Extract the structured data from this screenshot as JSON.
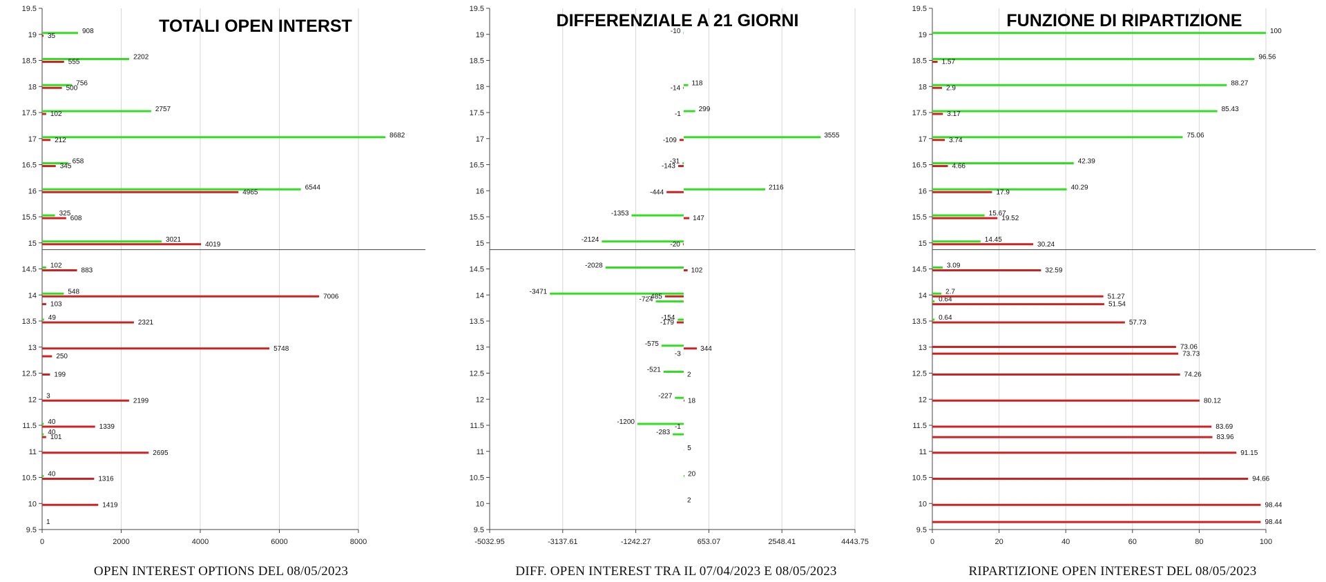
{
  "colors": {
    "calls": "#33dd22",
    "puts": "#cc2222",
    "grid": "#d6d6d6",
    "axis": "#444444",
    "separator": "#555555"
  },
  "chart_data": [
    {
      "type": "bar",
      "orientation": "horizontal",
      "title": "TOTALI OPEN INTERST",
      "caption": "OPEN INTEREST OPTIONS DEL 08/05/2023",
      "xlim": [
        0,
        9500
      ],
      "x_ticks": [
        0,
        2000,
        4000,
        6000,
        8000
      ],
      "x_tick_labels": [
        "0",
        "2000",
        "4000",
        "6000",
        "8000"
      ],
      "ylim": [
        9.5,
        19.5
      ],
      "y_ticks": [
        9.5,
        10,
        10.5,
        11,
        11.5,
        12,
        12.5,
        13,
        13.5,
        14,
        14.5,
        15,
        15.5,
        16,
        16.5,
        17,
        17.5,
        18,
        18.5,
        19,
        19.5
      ],
      "y_tick_labels": [
        "9.5",
        "10",
        "10.5",
        "11",
        "11.5",
        "12",
        "12.5",
        "13",
        "13.5",
        "14",
        "14.5",
        "15",
        "15.5",
        "16",
        "16.5",
        "17",
        "17.5",
        "18",
        "18.5",
        "19",
        "19.5"
      ],
      "separator_y": 14.87,
      "series": [
        {
          "color": "green",
          "bars": [
            {
              "y": 19,
              "value": 908,
              "label": "908"
            },
            {
              "y": 18.5,
              "value": 2202,
              "label": "2202"
            },
            {
              "y": 18,
              "value": 756,
              "label": "756"
            },
            {
              "y": 17.5,
              "value": 2757,
              "label": "2757"
            },
            {
              "y": 17,
              "value": 8682,
              "label": "8682"
            },
            {
              "y": 16.5,
              "value": 658,
              "label": "658"
            },
            {
              "y": 16,
              "value": 6544,
              "label": "6544"
            },
            {
              "y": 15.5,
              "value": 325,
              "label": "325"
            },
            {
              "y": 15,
              "value": 3021,
              "label": "3021"
            },
            {
              "y": 14.5,
              "value": 102,
              "label": "102"
            },
            {
              "y": 14,
              "value": 548,
              "label": "548"
            },
            {
              "y": 13.5,
              "value": 49,
              "label": "49"
            },
            {
              "y": 12,
              "value": 3,
              "label": "3"
            },
            {
              "y": 11.5,
              "value": 40,
              "label": "40"
            },
            {
              "y": 11.3,
              "value": 40,
              "label": "40"
            },
            {
              "y": 10.5,
              "value": 40,
              "label": "40"
            }
          ]
        },
        {
          "color": "red",
          "bars": [
            {
              "y": 19,
              "value": 35,
              "label": "35"
            },
            {
              "y": 18.5,
              "value": 555,
              "label": "555"
            },
            {
              "y": 18,
              "value": 500,
              "label": "500"
            },
            {
              "y": 17.5,
              "value": 102,
              "label": "102"
            },
            {
              "y": 17,
              "value": 212,
              "label": "212"
            },
            {
              "y": 16.5,
              "value": 345,
              "label": "345"
            },
            {
              "y": 16,
              "value": 4965,
              "label": "4965"
            },
            {
              "y": 15.5,
              "value": 608,
              "label": "608"
            },
            {
              "y": 15,
              "value": 4019,
              "label": "4019"
            },
            {
              "y": 14.5,
              "value": 883,
              "label": "883"
            },
            {
              "y": 14,
              "value": 7006,
              "label": "7006"
            },
            {
              "y": 13.85,
              "value": 103,
              "label": "103"
            },
            {
              "y": 13.5,
              "value": 2321,
              "label": "2321"
            },
            {
              "y": 13,
              "value": 5748,
              "label": "5748"
            },
            {
              "y": 12.85,
              "value": 250,
              "label": "250"
            },
            {
              "y": 12.5,
              "value": 199,
              "label": "199"
            },
            {
              "y": 12,
              "value": 2199,
              "label": "2199"
            },
            {
              "y": 11.5,
              "value": 1339,
              "label": "1339"
            },
            {
              "y": 11.3,
              "value": 101,
              "label": "101"
            },
            {
              "y": 11,
              "value": 2695,
              "label": "2695"
            },
            {
              "y": 10.5,
              "value": 1316,
              "label": "1316"
            },
            {
              "y": 10,
              "value": 1419,
              "label": "1419"
            },
            {
              "y": 9.67,
              "value": 1,
              "label": "1"
            }
          ]
        }
      ]
    },
    {
      "type": "bar",
      "orientation": "horizontal",
      "title": "DIFFERENZIALE A 21 GIORNI",
      "caption": "DIFF. OPEN INTEREST TRA IL 07/04/2023 E 08/05/2023",
      "xlim": [
        -5032.95,
        4443.75
      ],
      "x_ticks": [
        -5032.95,
        -3137.61,
        -1242.27,
        653.07,
        2548.41,
        4443.75
      ],
      "x_tick_labels": [
        "-5032.95",
        "-3137.61",
        "-1242.27",
        "653.07",
        "2548.41",
        "4443.75"
      ],
      "ylim": [
        9.5,
        19.5
      ],
      "y_ticks": [
        9.5,
        10,
        10.5,
        11,
        11.5,
        12,
        12.5,
        13,
        13.5,
        14,
        14.5,
        15,
        15.5,
        16,
        16.5,
        17,
        17.5,
        18,
        18.5,
        19,
        19.5
      ],
      "y_tick_labels": [
        "9.5",
        "10",
        "10.5",
        "11",
        "11.5",
        "12",
        "12.5",
        "13",
        "13.5",
        "14",
        "14.5",
        "15",
        "15.5",
        "16",
        "16.5",
        "17",
        "17.5",
        "18",
        "18.5",
        "19",
        "19.5"
      ],
      "separator_y": 14.87,
      "series": [
        {
          "color": "green",
          "bars": [
            {
              "y": 19,
              "value": -10,
              "label": "-10"
            },
            {
              "y": 18,
              "value": 118,
              "label": "118"
            },
            {
              "y": 17.5,
              "value": 299,
              "label": "299"
            },
            {
              "y": 17,
              "value": 3555,
              "label": "3555"
            },
            {
              "y": 16.5,
              "value": -31,
              "label": "-31"
            },
            {
              "y": 16,
              "value": 2116,
              "label": "2116"
            },
            {
              "y": 15.5,
              "value": -1353,
              "label": "-1353"
            },
            {
              "y": 15,
              "value": -2124,
              "label": "-2124"
            },
            {
              "y": 14.5,
              "value": -2028,
              "label": "-2028"
            },
            {
              "y": 14,
              "value": -3471,
              "label": "-3471"
            },
            {
              "y": 13.85,
              "value": -724,
              "label": "-724"
            },
            {
              "y": 13.5,
              "value": -154,
              "label": "-154"
            },
            {
              "y": 13,
              "value": -575,
              "label": "-575"
            },
            {
              "y": 12.5,
              "value": -521,
              "label": "-521"
            },
            {
              "y": 12,
              "value": -227,
              "label": "-227"
            },
            {
              "y": 11.5,
              "value": -1200,
              "label": "-1200"
            },
            {
              "y": 11.3,
              "value": -283,
              "label": "-283"
            },
            {
              "y": 11,
              "value": 5,
              "label": "5"
            },
            {
              "y": 10.5,
              "value": 20,
              "label": "20"
            },
            {
              "y": 10,
              "value": 2,
              "label": "2"
            }
          ]
        },
        {
          "color": "red",
          "bars": [
            {
              "y": 18,
              "value": -14,
              "label": "-14"
            },
            {
              "y": 17.5,
              "value": -1,
              "label": "-1"
            },
            {
              "y": 17,
              "value": -109,
              "label": "-109"
            },
            {
              "y": 16.5,
              "value": -143,
              "label": "-143"
            },
            {
              "y": 16,
              "value": -444,
              "label": "-444"
            },
            {
              "y": 15.5,
              "value": 147,
              "label": "147"
            },
            {
              "y": 15,
              "value": -20,
              "label": "-20"
            },
            {
              "y": 14.5,
              "value": 102,
              "label": "102"
            },
            {
              "y": 14,
              "value": -485,
              "label": "-485"
            },
            {
              "y": 13.5,
              "value": -179,
              "label": "-179"
            },
            {
              "y": 13,
              "value": 344,
              "label": "344"
            },
            {
              "y": 12.9,
              "value": -3,
              "label": "-3"
            },
            {
              "y": 12.5,
              "value": 2,
              "label": "2"
            },
            {
              "y": 12,
              "value": 18,
              "label": "18"
            },
            {
              "y": 11.5,
              "value": -1,
              "label": "-1"
            }
          ]
        }
      ]
    },
    {
      "type": "bar",
      "orientation": "horizontal",
      "title": "FUNZIONE DI RIPARTIZIONE",
      "caption": "RIPARTIZIONE OPEN INTEREST DEL 08/05/2023",
      "xlim": [
        0,
        115
      ],
      "x_ticks": [
        0,
        20,
        40,
        60,
        80,
        100
      ],
      "x_tick_labels": [
        "0",
        "20",
        "40",
        "60",
        "80",
        "100"
      ],
      "ylim": [
        9.5,
        19.5
      ],
      "y_ticks": [
        9.5,
        10,
        10.5,
        11,
        11.5,
        12,
        12.5,
        13,
        13.5,
        14,
        14.5,
        15,
        15.5,
        16,
        16.5,
        17,
        17.5,
        18,
        18.5,
        19,
        19.5
      ],
      "y_tick_labels": [
        "9.5",
        "10",
        "10.5",
        "11",
        "11.5",
        "12",
        "12.5",
        "13",
        "13.5",
        "14",
        "14.5",
        "15",
        "15.5",
        "16",
        "16.5",
        "17",
        "17.5",
        "18",
        "18.5",
        "19",
        "19.5"
      ],
      "separator_y": 14.87,
      "series": [
        {
          "color": "green",
          "bars": [
            {
              "y": 19,
              "value": 100,
              "label": "100"
            },
            {
              "y": 18.5,
              "value": 96.56,
              "label": "96.56"
            },
            {
              "y": 18,
              "value": 88.27,
              "label": "88.27"
            },
            {
              "y": 17.5,
              "value": 85.43,
              "label": "85.43"
            },
            {
              "y": 17,
              "value": 75.06,
              "label": "75.06"
            },
            {
              "y": 16.5,
              "value": 42.39,
              "label": "42.39"
            },
            {
              "y": 16,
              "value": 40.29,
              "label": "40.29"
            },
            {
              "y": 15.5,
              "value": 15.67,
              "label": "15.67"
            },
            {
              "y": 15,
              "value": 14.45,
              "label": "14.45"
            },
            {
              "y": 14.5,
              "value": 3.09,
              "label": "3.09"
            },
            {
              "y": 14,
              "value": 2.7,
              "label": "2.7"
            },
            {
              "y": 13.85,
              "value": 0.64,
              "label": "0.64"
            },
            {
              "y": 13.5,
              "value": 0.64,
              "label": "0.64"
            }
          ]
        },
        {
          "color": "red",
          "bars": [
            {
              "y": 18.5,
              "value": 1.57,
              "label": "1.57"
            },
            {
              "y": 18,
              "value": 2.9,
              "label": "2.9"
            },
            {
              "y": 17.5,
              "value": 3.17,
              "label": "3.17"
            },
            {
              "y": 17,
              "value": 3.74,
              "label": "3.74"
            },
            {
              "y": 16.5,
              "value": 4.66,
              "label": "4.66"
            },
            {
              "y": 16,
              "value": 17.9,
              "label": "17.9"
            },
            {
              "y": 15.5,
              "value": 19.52,
              "label": "19.52"
            },
            {
              "y": 15,
              "value": 30.24,
              "label": "30.24"
            },
            {
              "y": 14.5,
              "value": 32.59,
              "label": "32.59"
            },
            {
              "y": 14,
              "value": 51.27,
              "label": "51.27"
            },
            {
              "y": 13.85,
              "value": 51.54,
              "label": "51.54"
            },
            {
              "y": 13.5,
              "value": 57.73,
              "label": "57.73"
            },
            {
              "y": 13.03,
              "value": 73.06,
              "label": "73.06"
            },
            {
              "y": 12.9,
              "value": 73.73,
              "label": "73.73"
            },
            {
              "y": 12.5,
              "value": 74.26,
              "label": "74.26"
            },
            {
              "y": 12,
              "value": 80.12,
              "label": "80.12"
            },
            {
              "y": 11.5,
              "value": 83.69,
              "label": "83.69"
            },
            {
              "y": 11.3,
              "value": 83.96,
              "label": "83.96"
            },
            {
              "y": 11,
              "value": 91.15,
              "label": "91.15"
            },
            {
              "y": 10.5,
              "value": 94.66,
              "label": "94.66"
            },
            {
              "y": 10,
              "value": 98.44,
              "label": "98.44"
            },
            {
              "y": 9.67,
              "value": 98.44,
              "label": "98.44"
            }
          ]
        }
      ]
    }
  ]
}
